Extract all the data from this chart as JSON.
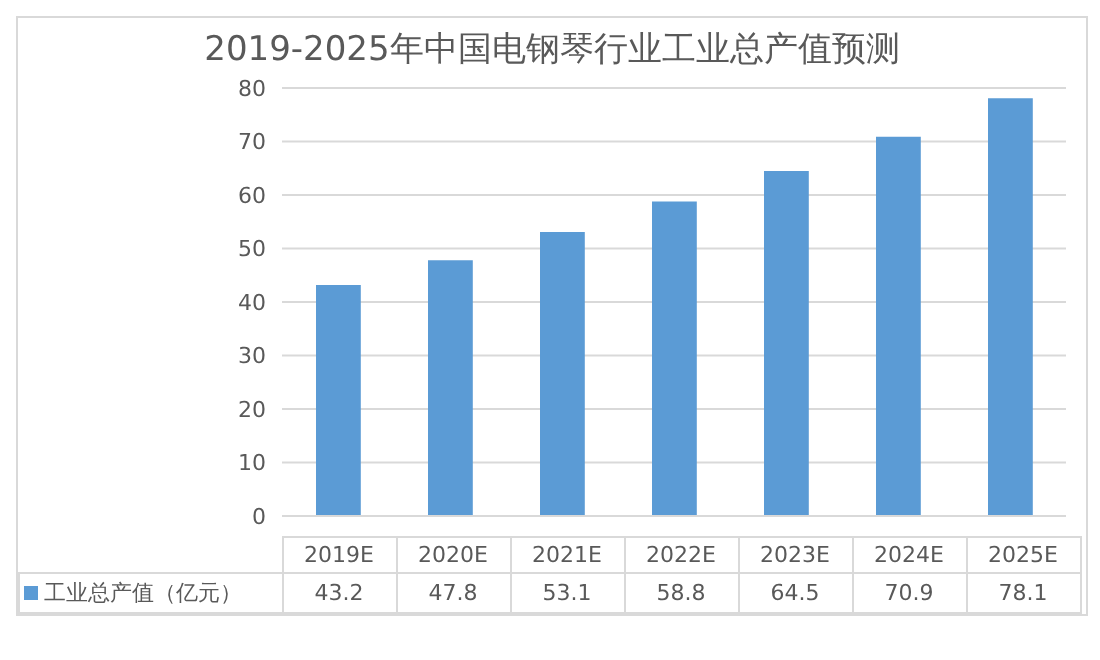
{
  "chart_data": {
    "type": "bar",
    "title": "2019-2025年中国电钢琴行业工业总产值预测",
    "categories": [
      "2019E",
      "2020E",
      "2021E",
      "2022E",
      "2023E",
      "2024E",
      "2025E"
    ],
    "series": [
      {
        "name": "工业总产值（亿元）",
        "color": "#5b9bd5",
        "values": [
          43.2,
          47.8,
          53.1,
          58.8,
          64.5,
          70.9,
          78.1
        ]
      }
    ],
    "ylim": [
      0,
      80
    ],
    "yticks": [
      0,
      10,
      20,
      30,
      40,
      50,
      60,
      70,
      80
    ],
    "grid": "y",
    "legend": "bottom",
    "data_labels": true
  }
}
